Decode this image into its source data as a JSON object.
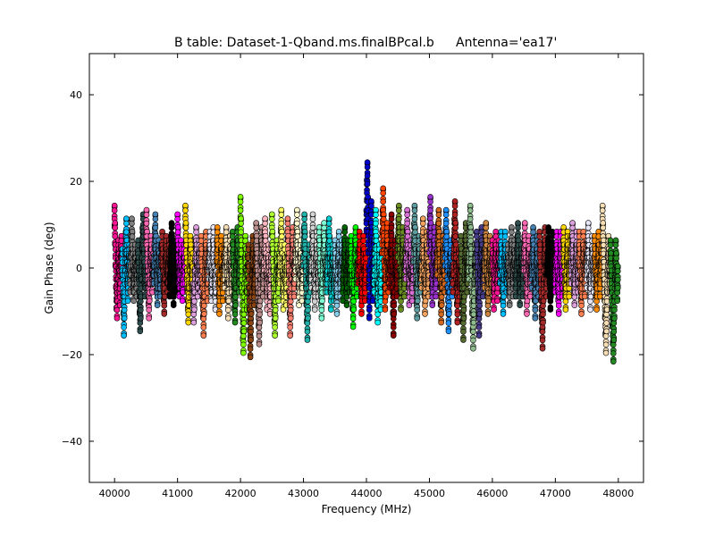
{
  "chart_data": {
    "type": "scatter",
    "title_left": "B table: Dataset-1-Qband.ms.finalBPcal.b",
    "title_right": "Antenna='ea17'",
    "xlabel": "Frequency (MHz)",
    "ylabel": "Gain Phase (deg)",
    "xlim": [
      39600,
      48400
    ],
    "ylim": [
      -49.5,
      49.5
    ],
    "xticks": [
      40000,
      41000,
      42000,
      43000,
      44000,
      45000,
      46000,
      47000,
      48000
    ],
    "yticks": [
      40,
      20,
      0,
      -20,
      -40
    ],
    "ytick_labels": [
      "40",
      "20",
      "0",
      "−20",
      "−40"
    ],
    "grid": false,
    "spw_count": 64,
    "spw_start_mhz": 40000,
    "spw_width_mhz": 125,
    "channels_per_spw": 16,
    "palette": [
      "#ff1493",
      "#00bfff",
      "#808080",
      "#2f4f4f",
      "#ff69b4",
      "#4682b4",
      "#a52a2a",
      "#000000",
      "#ff00ff",
      "#ffd700",
      "#dda0dd",
      "#ff7f50",
      "#e6e6fa",
      "#ff8c00",
      "#f5deb3",
      "#228b22",
      "#7fff00",
      "#8b4513",
      "#bc8f8f",
      "#ffb6c1",
      "#adff2f",
      "#ffff66",
      "#fa8072",
      "#fffacd",
      "#20b2aa",
      "#d3d3d3",
      "#7fffd4",
      "#00ced1",
      "#87ceeb",
      "#006400",
      "#00ff00",
      "#ff0000",
      "#0000cd",
      "#00ffff",
      "#ff4500",
      "#8b0000",
      "#6b8e23",
      "#da70d6",
      "#5f9ea0",
      "#f4a460",
      "#9932cc",
      "#d2691e",
      "#1e90ff",
      "#b22222",
      "#556b2f",
      "#8fbc8f",
      "#483d8b",
      "#cd853f"
    ],
    "phases": [
      [
        12,
        8,
        3,
        -2,
        -7,
        -9,
        -5,
        0,
        4,
        2,
        -3,
        -6,
        -1,
        3,
        5,
        1
      ],
      [
        2,
        -4,
        -8,
        -13,
        -9,
        -3,
        2,
        6,
        9,
        4,
        -1,
        -5,
        -2,
        1,
        3,
        0
      ],
      [
        -3,
        1,
        5,
        9,
        6,
        2,
        -2,
        -5,
        -3,
        0,
        3,
        1,
        -2,
        -4,
        -1,
        2
      ],
      [
        4,
        0,
        -3,
        -8,
        -12,
        -9,
        -4,
        0,
        3,
        7,
        10,
        6,
        2,
        -1,
        -4,
        -2
      ],
      [
        8,
        11,
        6,
        2,
        -2,
        -6,
        -9,
        -5,
        -1,
        2,
        5,
        3,
        0,
        -3,
        -1,
        1
      ],
      [
        -1,
        3,
        7,
        10,
        5,
        1,
        -3,
        -6,
        -2,
        2,
        4,
        1,
        -2,
        -4,
        0,
        3
      ],
      [
        3,
        6,
        2,
        -2,
        -5,
        -8,
        -4,
        0,
        3,
        5,
        2,
        -1,
        -3,
        -1,
        2,
        4
      ],
      [
        -4,
        -1,
        2,
        5,
        8,
        4,
        0,
        -3,
        -6,
        -2,
        1,
        4,
        2,
        -1,
        -3,
        0
      ],
      [
        10,
        7,
        3,
        -1,
        -4,
        -2,
        1,
        4,
        2,
        -2,
        -5,
        -3,
        0,
        3,
        1,
        -1
      ],
      [
        12,
        8,
        4,
        0,
        -3,
        -7,
        -10,
        -6,
        -2,
        2,
        5,
        3,
        -1,
        -4,
        -2,
        1
      ],
      [
        -6,
        -10,
        -7,
        -3,
        0,
        4,
        7,
        3,
        -1,
        -4,
        -2,
        1,
        4,
        2,
        -1,
        -3
      ],
      [
        5,
        2,
        -2,
        -6,
        -9,
        -13,
        -8,
        -4,
        0,
        3,
        6,
        2,
        -2,
        -5,
        -1,
        2
      ],
      [
        0,
        3,
        6,
        2,
        -2,
        -5,
        -3,
        1,
        4,
        7,
        3,
        -1,
        -4,
        -7,
        -3,
        0
      ],
      [
        4,
        7,
        3,
        -1,
        -4,
        -8,
        -5,
        -1,
        2,
        5,
        2,
        -2,
        -5,
        -2,
        1,
        3
      ],
      [
        -2,
        1,
        4,
        7,
        3,
        -1,
        -5,
        -9,
        -5,
        -1,
        2,
        5,
        2,
        -1,
        -3,
        0
      ],
      [
        6,
        3,
        -1,
        -4,
        -7,
        -10,
        -6,
        -2,
        1,
        4,
        7,
        4,
        0,
        -3,
        -1,
        2
      ],
      [
        14,
        9,
        4,
        -2,
        -8,
        -14,
        -17,
        -12,
        -6,
        0,
        5,
        2,
        -3,
        -7,
        -3,
        1
      ],
      [
        3,
        -2,
        -7,
        -12,
        -18,
        -14,
        -8,
        -3,
        1,
        5,
        2,
        -2,
        -6,
        -3,
        0,
        2
      ],
      [
        8,
        5,
        1,
        -3,
        -7,
        -11,
        -15,
        -10,
        -5,
        0,
        4,
        7,
        3,
        -1,
        -4,
        -1
      ],
      [
        2,
        6,
        9,
        5,
        1,
        -3,
        -7,
        -4,
        0,
        3,
        -1,
        -4,
        -8,
        -4,
        0,
        3
      ],
      [
        10,
        6,
        2,
        -2,
        -6,
        -10,
        -13,
        -9,
        -4,
        0,
        4,
        2,
        -2,
        -5,
        -2,
        1
      ],
      [
        -1,
        3,
        7,
        11,
        6,
        1,
        -3,
        -7,
        -4,
        0,
        3,
        0,
        -3,
        -6,
        -2,
        1
      ],
      [
        9,
        5,
        1,
        -3,
        -8,
        -13,
        -9,
        -4,
        0,
        4,
        7,
        3,
        -1,
        -4,
        -1,
        2
      ],
      [
        0,
        4,
        8,
        11,
        6,
        2,
        -2,
        -6,
        -3,
        1,
        4,
        1,
        -2,
        -5,
        -2,
        0
      ],
      [
        3,
        7,
        10,
        6,
        2,
        -2,
        -6,
        -10,
        -14,
        -9,
        -4,
        0,
        3,
        0,
        -3,
        -1
      ],
      [
        -2,
        2,
        6,
        10,
        5,
        1,
        -3,
        -7,
        -4,
        0,
        3,
        6,
        2,
        -1,
        -4,
        -1
      ],
      [
        7,
        4,
        1,
        -3,
        -6,
        -9,
        -5,
        -1,
        2,
        5,
        8,
        4,
        0,
        -3,
        -1,
        1
      ],
      [
        -3,
        0,
        3,
        6,
        9,
        5,
        1,
        -3,
        -7,
        -4,
        0,
        3,
        1,
        -2,
        -5,
        -2
      ],
      [
        4,
        1,
        -2,
        -5,
        -8,
        -4,
        0,
        3,
        6,
        3,
        -1,
        -4,
        -1,
        2,
        4,
        1
      ],
      [
        -5,
        -2,
        1,
        4,
        7,
        3,
        0,
        -3,
        -6,
        -2,
        1,
        4,
        2,
        -1,
        -3,
        0
      ],
      [
        2,
        5,
        1,
        -3,
        -7,
        -11,
        -7,
        -3,
        1,
        4,
        7,
        3,
        -1,
        -4,
        -1,
        2
      ],
      [
        -1,
        2,
        6,
        3,
        -1,
        -4,
        -8,
        -5,
        -1,
        2,
        5,
        2,
        -2,
        -5,
        -2,
        1
      ],
      [
        11,
        18,
        22,
        14,
        6,
        -2,
        -9,
        -4,
        2,
        8,
        13,
        7,
        1,
        -5,
        -1,
        4
      ],
      [
        -3,
        2,
        7,
        11,
        5,
        -1,
        -6,
        -10,
        -6,
        -1,
        3,
        0,
        -4,
        -7,
        -3,
        1
      ],
      [
        6,
        11,
        16,
        10,
        4,
        -2,
        -7,
        -4,
        0,
        4,
        8,
        4,
        0,
        -3,
        -1,
        2
      ],
      [
        -2,
        2,
        6,
        10,
        4,
        -2,
        -8,
        -13,
        -8,
        -3,
        1,
        4,
        1,
        -2,
        -4,
        -1
      ],
      [
        5,
        9,
        12,
        7,
        2,
        -3,
        -7,
        -3,
        1,
        4,
        7,
        3,
        -1,
        -4,
        -1,
        2
      ],
      [
        0,
        3,
        7,
        11,
        6,
        2,
        -2,
        -6,
        -3,
        1,
        4,
        1,
        -2,
        -5,
        -2,
        0
      ],
      [
        4,
        8,
        12,
        7,
        2,
        -2,
        -6,
        -9,
        -5,
        -1,
        2,
        5,
        2,
        -1,
        -3,
        0
      ],
      [
        -2,
        1,
        5,
        9,
        4,
        0,
        -4,
        -8,
        -5,
        -1,
        3,
        6,
        2,
        -1,
        -4,
        -1
      ],
      [
        6,
        10,
        14,
        8,
        3,
        -2,
        -6,
        -3,
        1,
        4,
        7,
        3,
        -1,
        -4,
        -1,
        2
      ],
      [
        1,
        4,
        8,
        11,
        6,
        2,
        -2,
        -6,
        -10,
        -6,
        -2,
        2,
        5,
        2,
        -1,
        -3
      ],
      [
        3,
        7,
        11,
        6,
        2,
        -2,
        -7,
        -12,
        -8,
        -3,
        1,
        4,
        1,
        -2,
        -4,
        -1
      ],
      [
        -3,
        1,
        5,
        9,
        13,
        8,
        3,
        -2,
        -6,
        -10,
        -5,
        -1,
        2,
        -1,
        -4,
        -2
      ],
      [
        5,
        2,
        -2,
        -6,
        -10,
        -14,
        -9,
        -4,
        0,
        4,
        8,
        4,
        0,
        -3,
        -1,
        1
      ],
      [
        0,
        4,
        8,
        12,
        7,
        2,
        -3,
        -8,
        -12,
        -16,
        -10,
        -5,
        -1,
        3,
        1,
        -1
      ],
      [
        6,
        3,
        -1,
        -5,
        -9,
        -13,
        -8,
        -3,
        1,
        4,
        7,
        3,
        -1,
        -4,
        -1,
        2
      ],
      [
        -2,
        2,
        5,
        8,
        4,
        0,
        -4,
        -8,
        -5,
        -1,
        2,
        5,
        2,
        -1,
        -3,
        0
      ],
      [
        4,
        1,
        -3,
        -7,
        -4,
        0,
        3,
        6,
        2,
        -1,
        -5,
        -2,
        1,
        4,
        2,
        -1
      ],
      [
        -1,
        3,
        6,
        2,
        -2,
        -5,
        -8,
        -4,
        0,
        3,
        6,
        3,
        0,
        -3,
        -1,
        1
      ],
      [
        3,
        0,
        -3,
        -6,
        -3,
        1,
        4,
        7,
        3,
        -1,
        -4,
        -1,
        2,
        4,
        1,
        -2
      ],
      [
        -4,
        -1,
        2,
        5,
        8,
        4,
        0,
        -3,
        -6,
        -3,
        0,
        3,
        1,
        -2,
        -4,
        -1
      ],
      [
        2,
        5,
        8,
        4,
        0,
        -4,
        -8,
        -5,
        -1,
        2,
        5,
        2,
        -1,
        -4,
        -1,
        1
      ],
      [
        -2,
        1,
        4,
        7,
        3,
        -1,
        -5,
        -9,
        -5,
        -1,
        2,
        5,
        1,
        -2,
        -4,
        -1
      ],
      [
        6,
        3,
        -1,
        -5,
        -9,
        -12,
        -16,
        -10,
        -5,
        0,
        4,
        7,
        3,
        -1,
        -4,
        -1
      ],
      [
        1,
        4,
        7,
        3,
        -1,
        -4,
        -7,
        -4,
        0,
        3,
        6,
        3,
        0,
        -3,
        -1,
        1
      ],
      [
        -3,
        0,
        3,
        6,
        2,
        -2,
        -5,
        -8,
        -4,
        0,
        3,
        6,
        2,
        -1,
        -4,
        -2
      ],
      [
        4,
        7,
        3,
        -1,
        -4,
        -7,
        -4,
        0,
        3,
        6,
        3,
        -1,
        -4,
        -1,
        2,
        5
      ],
      [
        -1,
        2,
        5,
        8,
        4,
        0,
        -3,
        -6,
        -3,
        0,
        3,
        6,
        3,
        0,
        -3,
        -1
      ],
      [
        3,
        6,
        2,
        -2,
        -5,
        -8,
        -4,
        0,
        3,
        6,
        2,
        -1,
        -4,
        -1,
        2,
        4
      ],
      [
        -2,
        1,
        4,
        8,
        4,
        0,
        -4,
        -7,
        -4,
        -1,
        2,
        5,
        2,
        -1,
        -3,
        0
      ],
      [
        5,
        2,
        -1,
        -4,
        -7,
        -4,
        0,
        3,
        6,
        3,
        -1,
        -4,
        -1,
        2,
        4,
        1
      ],
      [
        12,
        8,
        4,
        -1,
        -5,
        -9,
        -13,
        -17,
        -12,
        -7,
        -3,
        1,
        5,
        2,
        -1,
        -3
      ],
      [
        4,
        1,
        -3,
        -7,
        -11,
        -15,
        -19,
        -14,
        -9,
        -4,
        0,
        4,
        1,
        -2,
        -5,
        -2
      ]
    ]
  }
}
